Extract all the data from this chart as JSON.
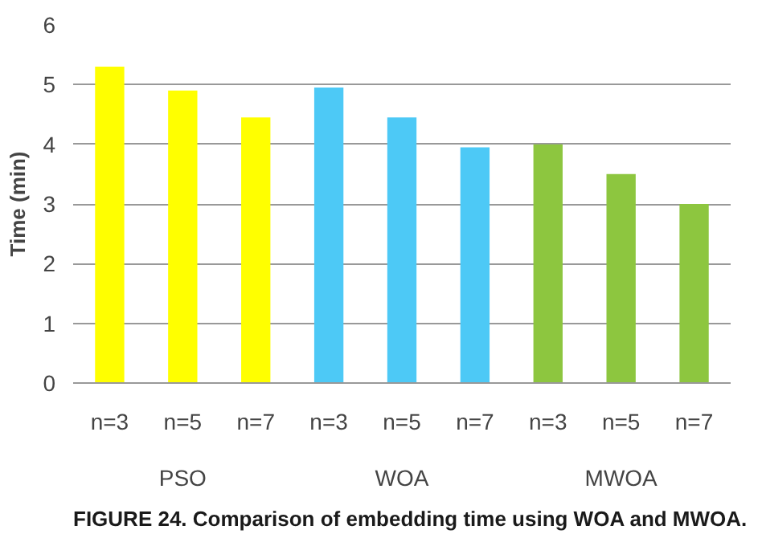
{
  "chart_data": {
    "type": "bar",
    "ylabel": "Time (min)",
    "categories": [
      "n=3",
      "n=5",
      "n=7",
      "n=3",
      "n=5",
      "n=7",
      "n=3",
      "n=5",
      "n=7"
    ],
    "values": [
      5.3,
      4.9,
      4.45,
      4.95,
      4.45,
      3.95,
      4.0,
      3.5,
      3.0
    ],
    "colors": [
      "#ffff00",
      "#ffff00",
      "#ffff00",
      "#4dc9f6",
      "#4dc9f6",
      "#4dc9f6",
      "#8dc63f",
      "#8dc63f",
      "#8dc63f"
    ],
    "ylim": [
      0,
      6
    ],
    "yticks": [
      0,
      1,
      2,
      3,
      4,
      5,
      6
    ],
    "grid": "y",
    "annotations": [
      "PSO",
      "WOA",
      "MWOA",
      "FIGURE 24.  Comparison of embedding time using WOA and MWOA."
    ]
  }
}
